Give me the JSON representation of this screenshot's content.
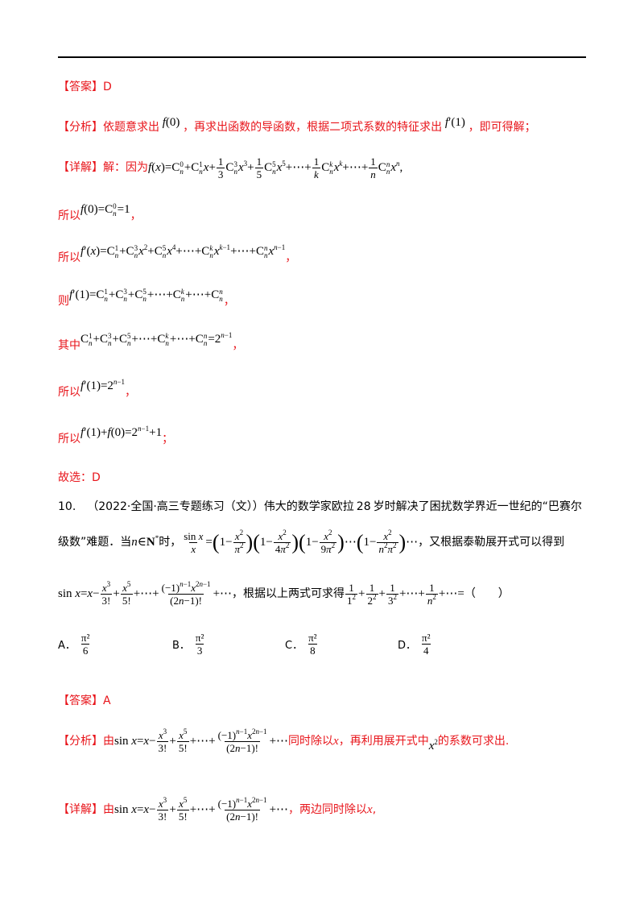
{
  "answer1": {
    "tag": "【答案】",
    "value": "D"
  },
  "analysis1": {
    "tag": "【分析】",
    "t1": "依题意求出",
    "t2": "，再求出函数的导函数，根据二项式系数的特征求出",
    "t3": "，即可得解；"
  },
  "detail1": {
    "tag": "【详解】",
    "t1": "解：因为"
  },
  "words": {
    "suoyi": "所以",
    "ze": "则",
    "qizhong": "其中"
  },
  "conclusion1": {
    "tag": "故选：",
    "value": "D"
  },
  "question10": {
    "number": "10.",
    "source": "（2022·全国·高三专题练习（文））",
    "text1": "伟大的数学家欧拉",
    "age": "28",
    "text2": "岁时解决了困扰数学界近一世纪的“巴赛尔",
    "text3": "级数”难题．当",
    "text4": "时，",
    "text5": "，又根据泰勒展开式可以得到",
    "text6": "，根据以上两式可求得",
    "blank": "（　　）"
  },
  "options": [
    {
      "label": "A．",
      "num": "π²",
      "den": "6"
    },
    {
      "label": "B．",
      "num": "π²",
      "den": "3"
    },
    {
      "label": "C．",
      "num": "π²",
      "den": "8"
    },
    {
      "label": "D．",
      "num": "π²",
      "den": "4"
    }
  ],
  "answer2": {
    "tag": "【答案】",
    "value": "A"
  },
  "analysis2": {
    "tag": "【分析】",
    "t1": "由",
    "t2": "同时除以",
    "x": "x",
    "t3": "，再利用展开式中",
    "t4": "的系数可求出."
  },
  "detail2": {
    "tag": "【详解】",
    "t1": "由",
    "t2": "，两边同时除以",
    "x": "x",
    "t3": ","
  },
  "colors": {
    "accent": "#e8151b",
    "text": "#000000"
  }
}
